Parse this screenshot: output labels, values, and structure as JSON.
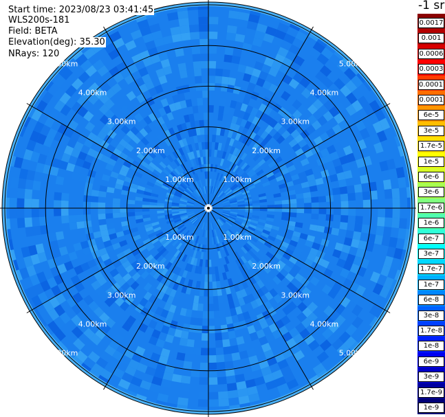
{
  "header": {
    "start_time": "Start time: 2023/08/23 03:41:45",
    "instrument": "WLS200s-181",
    "field": "Field: BETA",
    "elevation": "Elevation(deg): 35.30",
    "nrays": "NRays: 120"
  },
  "colorbar": {
    "unit": "-1 sr",
    "labels": [
      "0.0017",
      "0.001",
      "0.0006",
      "0.0003",
      "0.00017",
      "0.0001",
      "6e-5",
      "3e-5",
      "1.7e-5",
      "1e-5",
      "6e-6",
      "3e-6",
      "1.7e-6",
      "1e-6",
      "6e-7",
      "3e-7",
      "1.7e-7",
      "1e-7",
      "6e-8",
      "3e-8",
      "1.7e-8",
      "1e-8",
      "6e-9",
      "3e-9",
      "1.7e-9",
      "1e-9"
    ],
    "colors": [
      "#8b0000",
      "#b40000",
      "#d80000",
      "#ff0000",
      "#ff3c00",
      "#ff6e00",
      "#ff9600",
      "#ffbe00",
      "#ffe000",
      "#ffff00",
      "#d8ff28",
      "#a8ff50",
      "#80ff80",
      "#50ffb0",
      "#30ffd8",
      "#00ffff",
      "#00d8ff",
      "#00b0ff",
      "#0088ff",
      "#0060ff",
      "#0040ff",
      "#0020ff",
      "#0000f0",
      "#0000c8",
      "#0000a0",
      "#000078"
    ]
  },
  "radial_labels": [
    "1.00km",
    "2.00km",
    "3.00km",
    "4.00km",
    "5.00km"
  ]
}
